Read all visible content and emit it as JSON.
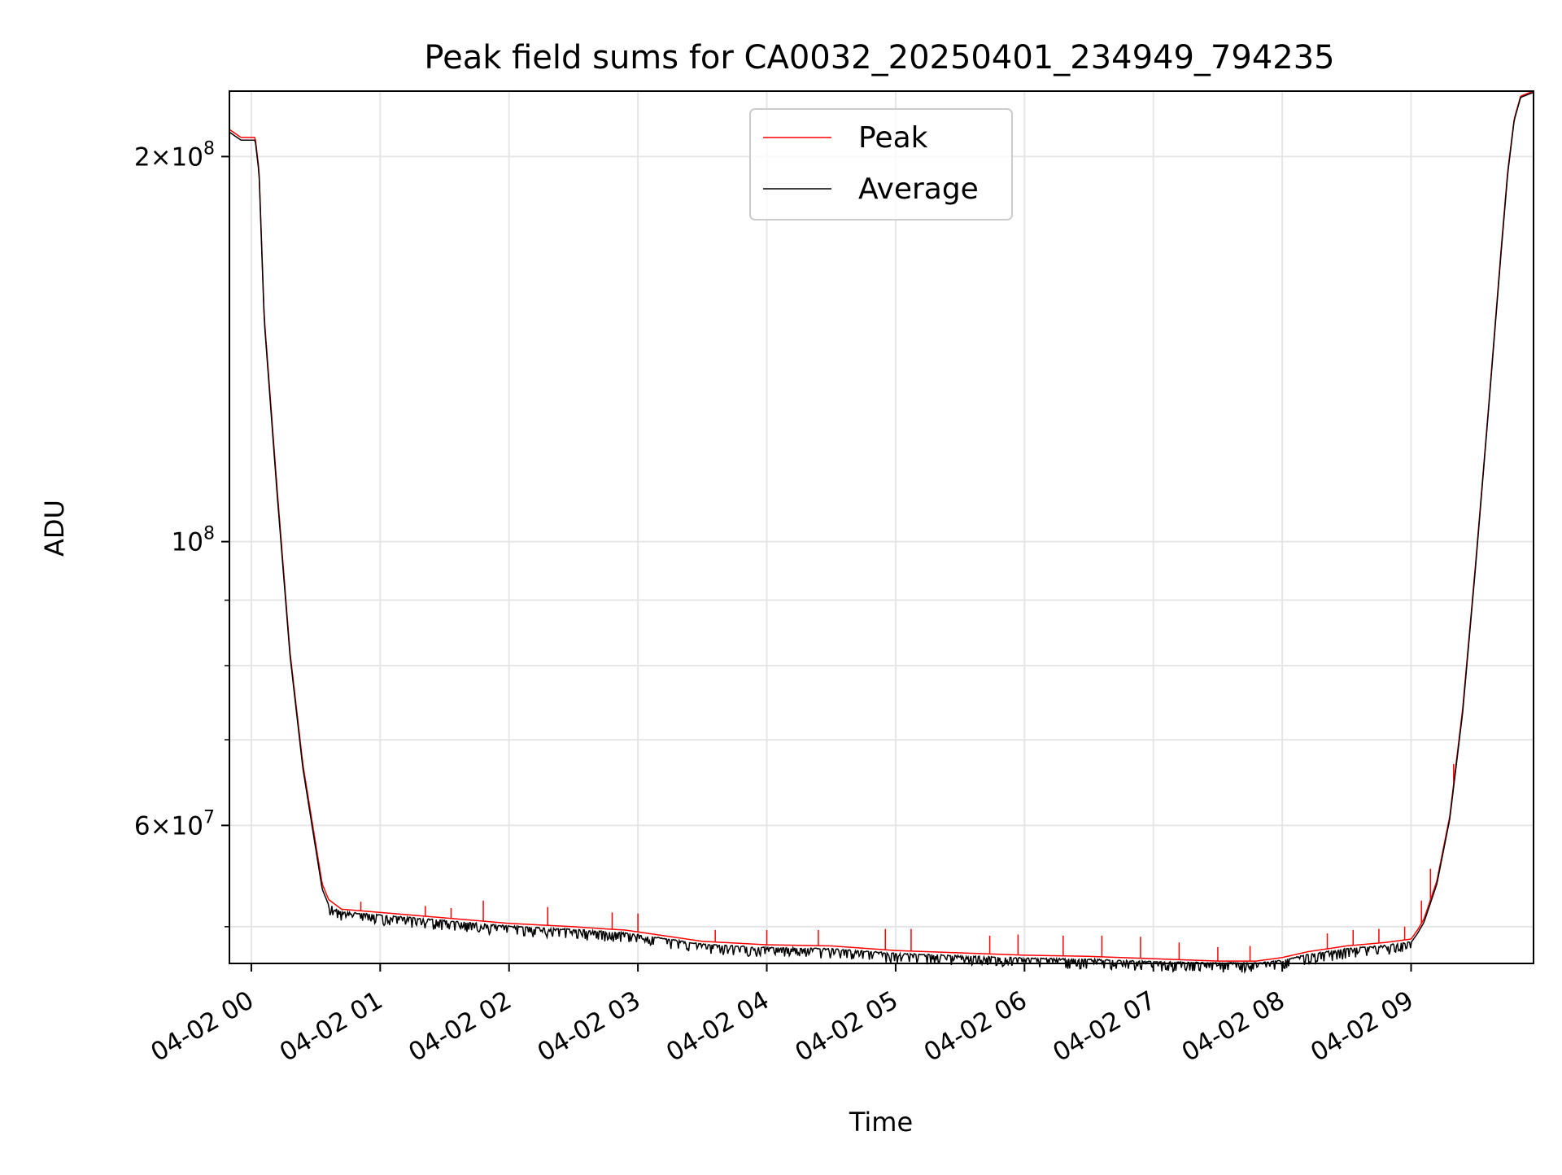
{
  "chart_data": {
    "type": "line",
    "title": "Peak field sums for CA0032_20250401_234949_794235",
    "xlabel": "Time",
    "ylabel": "ADU",
    "yscale": "log",
    "x_unit": "hours",
    "xlim": [
      -0.17,
      9.95
    ],
    "ylim": [
      46800000,
      225000000
    ],
    "grid": true,
    "legend_position": "top-center",
    "x_ticks": [
      {
        "value": 0,
        "label": "04-02 00"
      },
      {
        "value": 1,
        "label": "04-02 01"
      },
      {
        "value": 2,
        "label": "04-02 02"
      },
      {
        "value": 3,
        "label": "04-02 03"
      },
      {
        "value": 4,
        "label": "04-02 04"
      },
      {
        "value": 5,
        "label": "04-02 05"
      },
      {
        "value": 6,
        "label": "04-02 06"
      },
      {
        "value": 7,
        "label": "04-02 07"
      },
      {
        "value": 8,
        "label": "04-02 08"
      },
      {
        "value": 9,
        "label": "04-02 09"
      }
    ],
    "y_major_ticks": [
      {
        "value": 60000000,
        "mantissa": "6",
        "base": "10",
        "exponent": "7"
      },
      {
        "value": 100000000,
        "mantissa": "",
        "base": "10",
        "exponent": "8"
      },
      {
        "value": 200000000,
        "mantissa": "2",
        "base": "10",
        "exponent": "8"
      }
    ],
    "y_minor_ticks": [
      50000000,
      70000000,
      80000000,
      90000000
    ],
    "series": [
      {
        "name": "Peak",
        "color": "#ff0000",
        "x": [
          -0.17,
          -0.08,
          0.03,
          0.06,
          0.1,
          0.2,
          0.3,
          0.4,
          0.5,
          0.55,
          0.6,
          0.7,
          0.8,
          1.0,
          1.5,
          2.0,
          2.5,
          2.75,
          2.9,
          3.2,
          3.5,
          4.0,
          4.5,
          5.0,
          5.5,
          6.0,
          6.5,
          7.0,
          7.5,
          7.8,
          8.0,
          8.2,
          8.5,
          8.8,
          9.0,
          9.05,
          9.1,
          9.2,
          9.3,
          9.4,
          9.5,
          9.6,
          9.7,
          9.75,
          9.8,
          9.85,
          9.95
        ],
        "y": [
          210000000,
          207000000,
          207000000,
          195000000,
          150000000,
          110000000,
          82000000,
          67000000,
          58000000,
          54000000,
          52500000,
          51600000,
          51500000,
          51300000,
          50800000,
          50300000,
          50000000,
          49800000,
          49700000,
          49200000,
          48700000,
          48400000,
          48300000,
          47900000,
          47700000,
          47500000,
          47400000,
          47200000,
          47000000,
          47000000,
          47300000,
          47800000,
          48300000,
          48600000,
          48900000,
          49700000,
          50700000,
          54300000,
          61000000,
          74000000,
          96000000,
          127000000,
          170000000,
          195000000,
          214000000,
          223000000,
          225000000
        ],
        "spikes": [
          [
            0.85,
            52300000
          ],
          [
            1.35,
            51900000
          ],
          [
            1.55,
            51700000
          ],
          [
            1.8,
            52400000
          ],
          [
            2.3,
            51800000
          ],
          [
            2.8,
            51300000
          ],
          [
            3.0,
            51200000
          ],
          [
            3.6,
            49700000
          ],
          [
            4.0,
            49700000
          ],
          [
            4.4,
            49700000
          ],
          [
            4.92,
            49800000
          ],
          [
            5.12,
            49800000
          ],
          [
            5.73,
            49200000
          ],
          [
            5.95,
            49300000
          ],
          [
            6.3,
            49200000
          ],
          [
            6.6,
            49200000
          ],
          [
            6.9,
            49100000
          ],
          [
            7.2,
            48600000
          ],
          [
            7.5,
            48200000
          ],
          [
            7.75,
            48300000
          ],
          [
            8.35,
            49400000
          ],
          [
            8.55,
            49700000
          ],
          [
            8.75,
            49800000
          ],
          [
            8.95,
            50000000
          ],
          [
            9.08,
            52400000
          ],
          [
            9.15,
            55500000
          ],
          [
            9.33,
            67000000
          ]
        ]
      },
      {
        "name": "Average",
        "color": "#000000",
        "x": [
          -0.17,
          -0.08,
          0.03,
          0.06,
          0.1,
          0.2,
          0.3,
          0.4,
          0.5,
          0.55,
          0.6,
          0.7,
          0.8,
          1.0,
          1.5,
          2.0,
          2.5,
          2.75,
          2.9,
          3.2,
          3.5,
          4.0,
          4.5,
          5.0,
          5.5,
          6.0,
          6.5,
          7.0,
          7.5,
          7.8,
          8.0,
          8.2,
          8.5,
          8.8,
          9.0,
          9.05,
          9.1,
          9.2,
          9.3,
          9.4,
          9.5,
          9.6,
          9.7,
          9.75,
          9.8,
          9.85,
          9.95
        ],
        "y": [
          209000000,
          206000000,
          206000000,
          194000000,
          149000000,
          109000000,
          81500000,
          66500000,
          57500000,
          53500000,
          52000000,
          51300000,
          51200000,
          51000000,
          50500000,
          50000000,
          49700000,
          49500000,
          49400000,
          48900000,
          48400000,
          48100000,
          48000000,
          47600000,
          47400000,
          47200000,
          47100000,
          46900000,
          46800000,
          46800000,
          47000000,
          47500000,
          48000000,
          48300000,
          48600000,
          49400000,
          50400000,
          54000000,
          60700000,
          73500000,
          95500000,
          126500000,
          169000000,
          194000000,
          213500000,
          222500000,
          224500000
        ],
        "noise_amplitude": 0.012
      }
    ]
  }
}
